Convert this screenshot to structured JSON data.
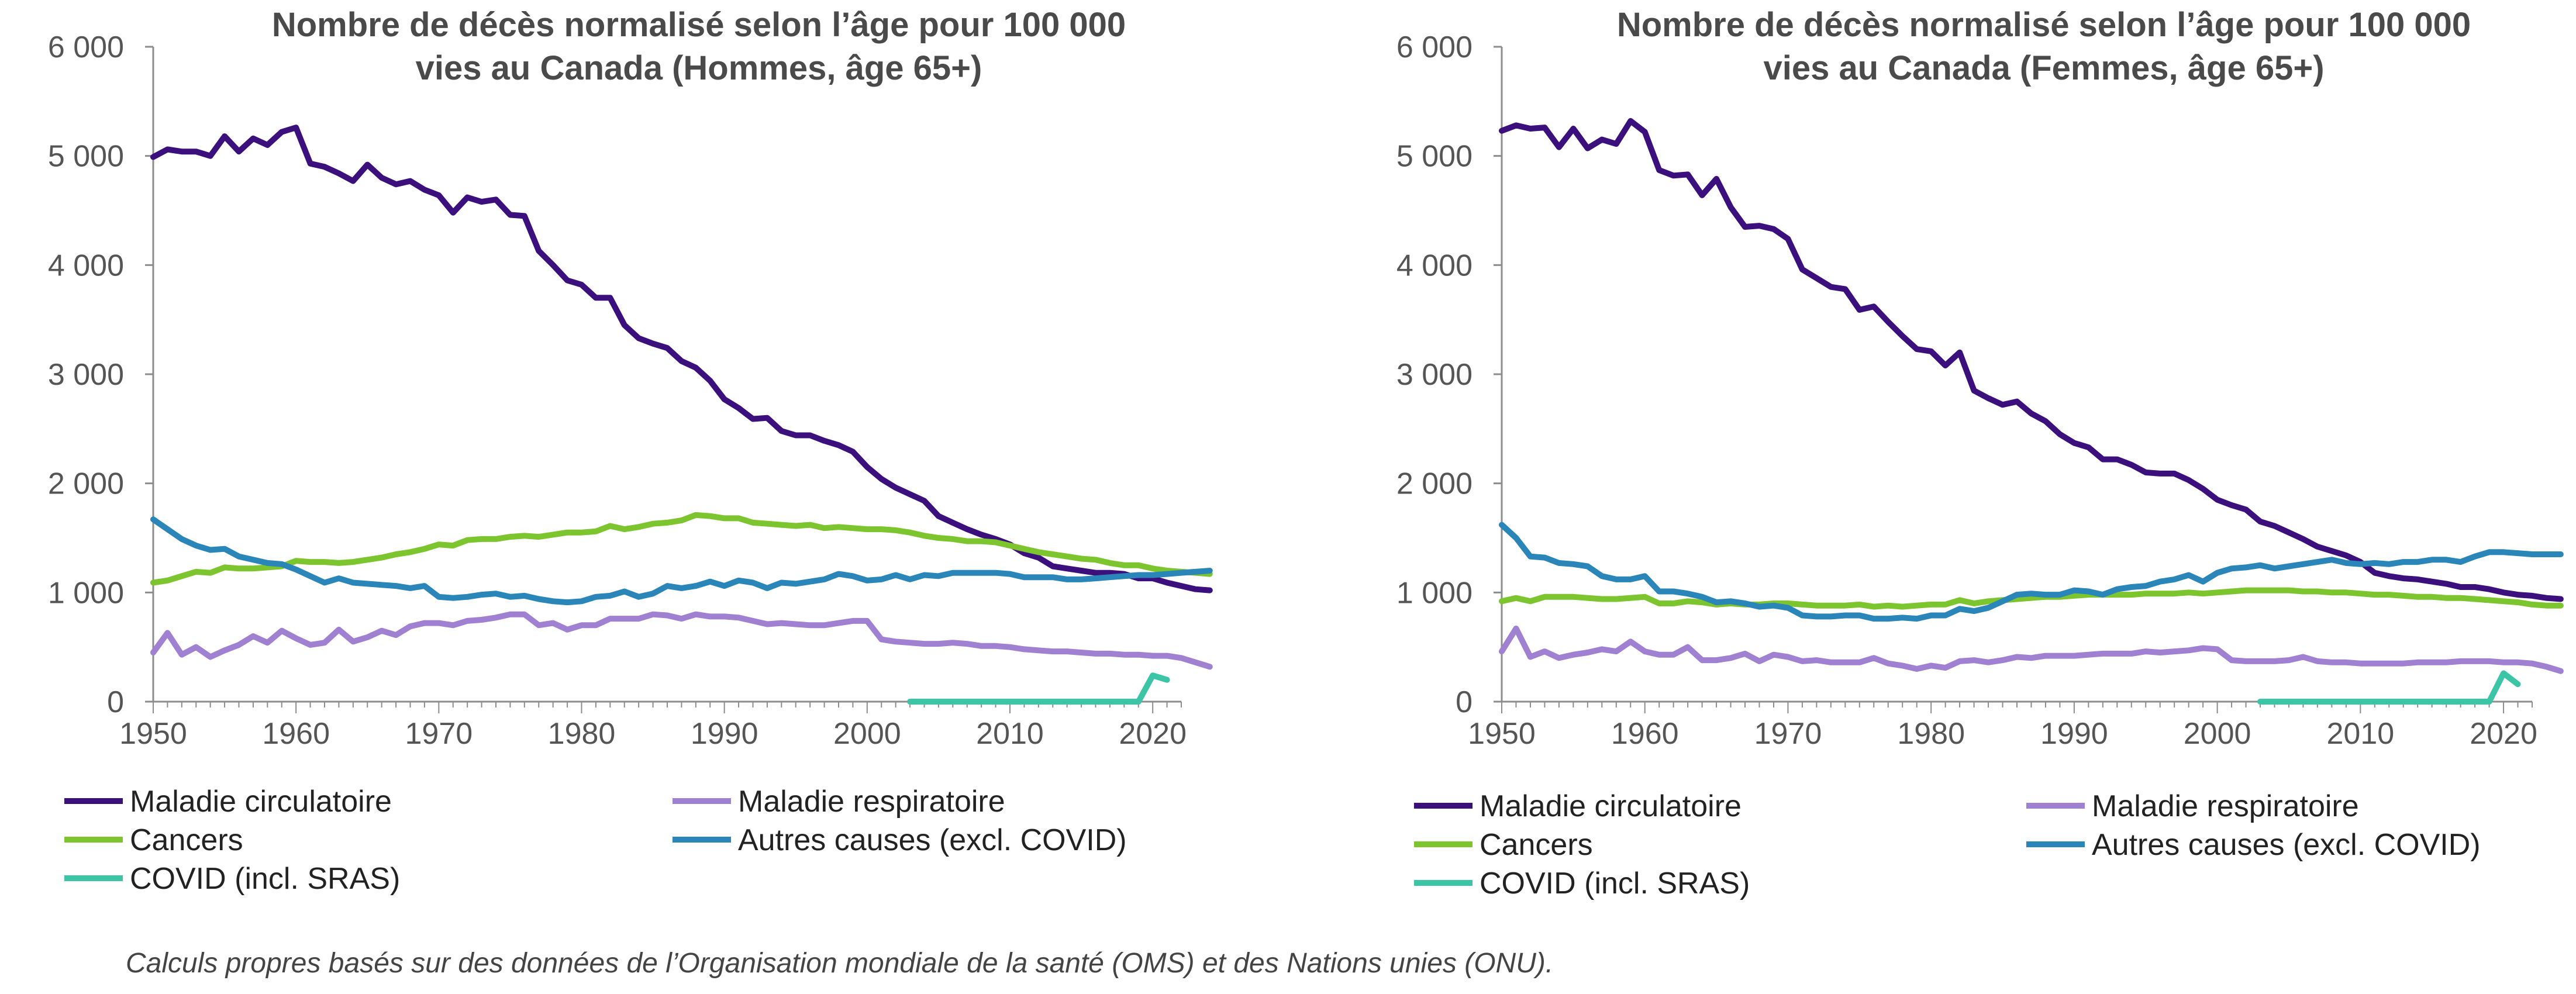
{
  "source_note": "Calculs propres basés sur des données de l’Organisation mondiale de la santé (OMS) et des Nations unies (ONU).",
  "chart_data": [
    {
      "type": "line",
      "title": "Nombre de décès normalisé selon l’âge pour 100 000 vies au Canada (Hommes, âge 65+)",
      "title_lines": [
        "Nombre de décès normalisé selon l’âge pour 100 000",
        "vies au Canada (Hommes, âge 65+)"
      ],
      "xlabel": "",
      "ylabel": "",
      "xlim": [
        1950,
        2022
      ],
      "ylim": [
        0,
        6000
      ],
      "x_ticks": [
        1950,
        1960,
        1970,
        1980,
        1990,
        2000,
        2010,
        2020
      ],
      "y_ticks": [
        0,
        1000,
        2000,
        3000,
        4000,
        5000,
        6000
      ],
      "y_tick_labels": [
        "0",
        "1 000",
        "2 000",
        "3 000",
        "4 000",
        "5 000",
        "6 000"
      ],
      "grid": false,
      "legend_position": "bottom",
      "series": [
        {
          "name": "Maladie circulatoire",
          "color": "#3b0f7c",
          "x_start": 1950,
          "values": [
            4990,
            5060,
            5040,
            5040,
            5000,
            5180,
            5040,
            5160,
            5100,
            5220,
            5260,
            4930,
            4900,
            4840,
            4770,
            4920,
            4800,
            4740,
            4770,
            4690,
            4640,
            4480,
            4620,
            4580,
            4600,
            4460,
            4450,
            4130,
            4000,
            3860,
            3820,
            3700,
            3700,
            3450,
            3330,
            3280,
            3240,
            3120,
            3060,
            2940,
            2770,
            2690,
            2590,
            2600,
            2480,
            2440,
            2440,
            2390,
            2350,
            2290,
            2150,
            2040,
            1960,
            1900,
            1840,
            1700,
            1640,
            1580,
            1530,
            1490,
            1440,
            1360,
            1320,
            1240,
            1220,
            1200,
            1180,
            1180,
            1170,
            1130,
            1130,
            1090,
            1060,
            1030,
            1020
          ]
        },
        {
          "name": "Maladie respiratoire",
          "color": "#a080d0",
          "x_start": 1950,
          "values": [
            450,
            630,
            430,
            500,
            410,
            470,
            520,
            600,
            540,
            650,
            580,
            520,
            540,
            660,
            550,
            590,
            650,
            610,
            690,
            720,
            720,
            700,
            740,
            750,
            770,
            800,
            800,
            700,
            720,
            660,
            700,
            700,
            760,
            760,
            760,
            800,
            790,
            760,
            800,
            780,
            780,
            770,
            740,
            710,
            720,
            710,
            700,
            700,
            720,
            740,
            740,
            570,
            550,
            540,
            530,
            530,
            540,
            530,
            510,
            510,
            500,
            480,
            470,
            460,
            460,
            450,
            440,
            440,
            430,
            430,
            420,
            420,
            400,
            360,
            320
          ]
        },
        {
          "name": "Cancers",
          "color": "#7cc52e",
          "x_start": 1950,
          "values": [
            1090,
            1110,
            1150,
            1190,
            1180,
            1230,
            1220,
            1220,
            1230,
            1240,
            1290,
            1280,
            1280,
            1270,
            1280,
            1300,
            1320,
            1350,
            1370,
            1400,
            1440,
            1430,
            1480,
            1490,
            1490,
            1510,
            1520,
            1510,
            1530,
            1550,
            1550,
            1560,
            1610,
            1580,
            1600,
            1630,
            1640,
            1660,
            1710,
            1700,
            1680,
            1680,
            1640,
            1630,
            1620,
            1610,
            1620,
            1590,
            1600,
            1590,
            1580,
            1580,
            1570,
            1550,
            1520,
            1500,
            1490,
            1470,
            1470,
            1460,
            1430,
            1400,
            1370,
            1350,
            1330,
            1310,
            1300,
            1270,
            1250,
            1250,
            1220,
            1200,
            1190,
            1180,
            1170
          ]
        },
        {
          "name": "Autres causes (excl. COVID)",
          "color": "#2a85b8",
          "x_start": 1950,
          "values": [
            1670,
            1580,
            1490,
            1430,
            1390,
            1400,
            1330,
            1300,
            1270,
            1260,
            1210,
            1150,
            1090,
            1130,
            1090,
            1080,
            1070,
            1060,
            1040,
            1060,
            960,
            950,
            960,
            980,
            990,
            960,
            970,
            940,
            920,
            910,
            920,
            960,
            970,
            1010,
            960,
            990,
            1060,
            1040,
            1060,
            1100,
            1060,
            1110,
            1090,
            1040,
            1090,
            1080,
            1100,
            1120,
            1170,
            1150,
            1110,
            1120,
            1160,
            1120,
            1160,
            1150,
            1180,
            1180,
            1180,
            1180,
            1170,
            1140,
            1140,
            1140,
            1120,
            1120,
            1130,
            1140,
            1150,
            1160,
            1160,
            1170,
            1180,
            1190,
            1200
          ]
        },
        {
          "name": "COVID (incl. SRAS)",
          "color": "#3cc4a6",
          "x_start": 2003,
          "values": [
            0,
            0,
            0,
            0,
            0,
            0,
            0,
            0,
            0,
            0,
            0,
            0,
            0,
            0,
            0,
            0,
            0,
            240,
            200
          ]
        }
      ]
    },
    {
      "type": "line",
      "title": "Nombre de décès normalisé selon l’âge pour 100 000 vies au Canada (Femmes, âge 65+)",
      "title_lines": [
        "Nombre de décès normalisé selon l’âge pour 100 000",
        "vies au Canada (Femmes, âge 65+)"
      ],
      "xlabel": "",
      "ylabel": "",
      "xlim": [
        1950,
        2022
      ],
      "ylim": [
        0,
        6000
      ],
      "x_ticks": [
        1950,
        1960,
        1970,
        1980,
        1990,
        2000,
        2010,
        2020
      ],
      "y_ticks": [
        0,
        1000,
        2000,
        3000,
        4000,
        5000,
        6000
      ],
      "y_tick_labels": [
        "0",
        "1 000",
        "2 000",
        "3 000",
        "4 000",
        "5 000",
        "6 000"
      ],
      "grid": false,
      "legend_position": "bottom",
      "series": [
        {
          "name": "Maladie circulatoire",
          "color": "#3b0f7c",
          "x_start": 1950,
          "values": [
            5230,
            5280,
            5250,
            5260,
            5080,
            5250,
            5070,
            5150,
            5110,
            5320,
            5220,
            4870,
            4820,
            4830,
            4640,
            4790,
            4530,
            4350,
            4360,
            4330,
            4240,
            3960,
            3880,
            3800,
            3780,
            3590,
            3620,
            3480,
            3350,
            3230,
            3210,
            3080,
            3200,
            2850,
            2780,
            2720,
            2750,
            2640,
            2570,
            2450,
            2370,
            2330,
            2220,
            2220,
            2170,
            2100,
            2090,
            2090,
            2030,
            1950,
            1850,
            1800,
            1760,
            1650,
            1610,
            1550,
            1490,
            1420,
            1380,
            1340,
            1280,
            1180,
            1150,
            1130,
            1120,
            1100,
            1080,
            1050,
            1050,
            1030,
            1000,
            980,
            970,
            950,
            940
          ]
        },
        {
          "name": "Maladie respiratoire",
          "color": "#a080d0",
          "x_start": 1950,
          "values": [
            460,
            670,
            410,
            460,
            400,
            430,
            450,
            480,
            460,
            550,
            460,
            430,
            430,
            500,
            380,
            380,
            400,
            440,
            370,
            430,
            410,
            370,
            380,
            360,
            360,
            360,
            400,
            350,
            330,
            300,
            330,
            310,
            370,
            380,
            360,
            380,
            410,
            400,
            420,
            420,
            420,
            430,
            440,
            440,
            440,
            460,
            450,
            460,
            470,
            490,
            480,
            380,
            370,
            370,
            370,
            380,
            410,
            370,
            360,
            360,
            350,
            350,
            350,
            350,
            360,
            360,
            360,
            370,
            370,
            370,
            360,
            360,
            350,
            320,
            280
          ]
        },
        {
          "name": "Cancers",
          "color": "#7cc52e",
          "x_start": 1950,
          "values": [
            920,
            950,
            920,
            960,
            960,
            960,
            950,
            940,
            940,
            950,
            960,
            900,
            900,
            920,
            910,
            890,
            900,
            890,
            890,
            900,
            900,
            890,
            880,
            880,
            880,
            890,
            870,
            880,
            870,
            880,
            890,
            890,
            930,
            900,
            920,
            930,
            940,
            950,
            960,
            960,
            970,
            980,
            980,
            980,
            980,
            990,
            990,
            990,
            1000,
            990,
            1000,
            1010,
            1020,
            1020,
            1020,
            1020,
            1010,
            1010,
            1000,
            1000,
            990,
            980,
            980,
            970,
            960,
            960,
            950,
            950,
            940,
            930,
            920,
            910,
            890,
            880,
            880
          ]
        },
        {
          "name": "Autres causes (excl. COVID)",
          "color": "#2a85b8",
          "x_start": 1950,
          "values": [
            1620,
            1500,
            1330,
            1320,
            1270,
            1260,
            1240,
            1150,
            1120,
            1120,
            1150,
            1010,
            1010,
            990,
            960,
            910,
            920,
            900,
            870,
            880,
            860,
            790,
            780,
            780,
            790,
            790,
            760,
            760,
            770,
            760,
            790,
            790,
            850,
            830,
            860,
            920,
            980,
            990,
            980,
            980,
            1020,
            1010,
            980,
            1030,
            1050,
            1060,
            1100,
            1120,
            1160,
            1100,
            1180,
            1220,
            1230,
            1250,
            1220,
            1240,
            1260,
            1280,
            1300,
            1270,
            1260,
            1270,
            1260,
            1280,
            1280,
            1300,
            1300,
            1280,
            1330,
            1370,
            1370,
            1360,
            1350,
            1350,
            1350
          ]
        },
        {
          "name": "COVID (incl. SRAS)",
          "color": "#3cc4a6",
          "x_start": 2003,
          "values": [
            0,
            0,
            0,
            0,
            0,
            0,
            0,
            0,
            0,
            0,
            0,
            0,
            0,
            0,
            0,
            0,
            0,
            260,
            160
          ]
        }
      ]
    }
  ]
}
